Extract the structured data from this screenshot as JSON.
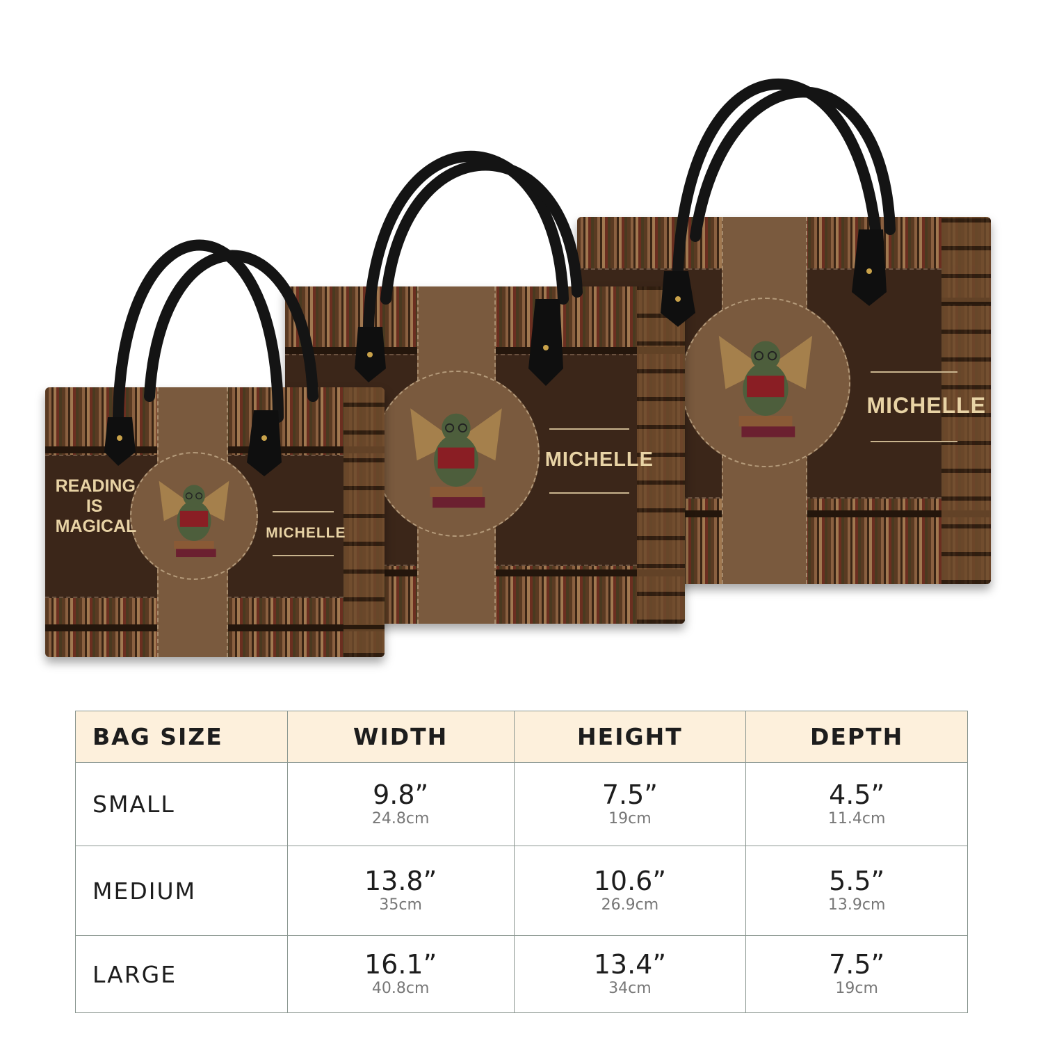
{
  "product": {
    "bags": [
      {
        "size": "large",
        "name": "MICHELLE"
      },
      {
        "size": "medium",
        "name": "MICHELLE"
      },
      {
        "size": "small",
        "name": "MICHELLE",
        "slogan": [
          "READING",
          "IS",
          "MAGICAL"
        ]
      }
    ],
    "colors": {
      "leather_dark": "#3b2619",
      "leather_light": "#7a5a3e",
      "text_gold": "#e8d3a5",
      "handle": "#151515",
      "table_header": "#fdf0dc"
    }
  },
  "size_table": {
    "headers": [
      "BAG SIZE",
      "WIDTH",
      "HEIGHT",
      "DEPTH"
    ],
    "rows": [
      {
        "size": "SMALL",
        "width": {
          "in": "9.8”",
          "cm": "24.8cm"
        },
        "height": {
          "in": "7.5”",
          "cm": "19cm"
        },
        "depth": {
          "in": "4.5”",
          "cm": "11.4cm"
        }
      },
      {
        "size": "MEDIUM",
        "width": {
          "in": "13.8”",
          "cm": "35cm"
        },
        "height": {
          "in": "10.6”",
          "cm": "26.9cm"
        },
        "depth": {
          "in": "5.5”",
          "cm": "13.9cm"
        }
      },
      {
        "size": "LARGE",
        "width": {
          "in": "16.1”",
          "cm": "40.8cm"
        },
        "height": {
          "in": "13.4”",
          "cm": "34cm"
        },
        "depth": {
          "in": "7.5”",
          "cm": "19cm"
        }
      }
    ]
  }
}
